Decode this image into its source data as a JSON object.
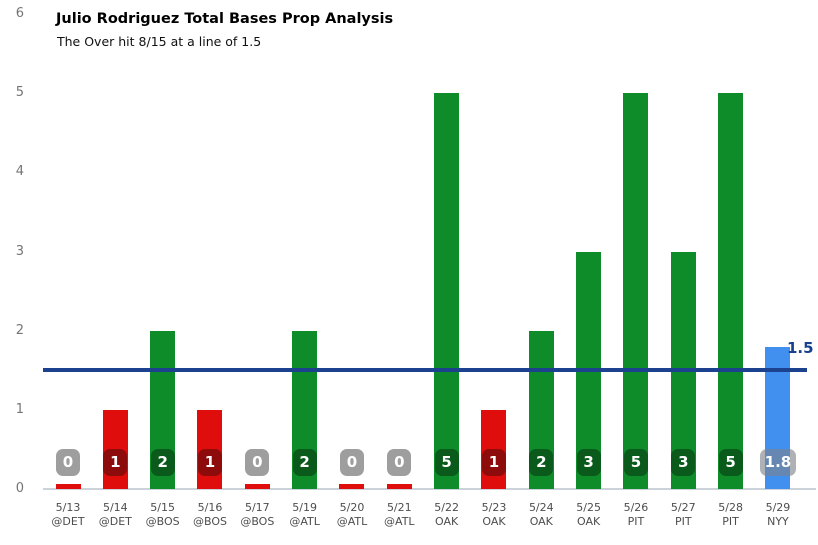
{
  "header": {
    "title": "Julio Rodriguez Total Bases Prop Analysis",
    "subtitle": "The Over hit 8/15 at a line of 1.5"
  },
  "prop_line": {
    "value": 1.5,
    "label": "1.5"
  },
  "y_axis": {
    "ticks": [
      "0",
      "1",
      "2",
      "3",
      "4",
      "5",
      "6"
    ],
    "max": 6
  },
  "colors": {
    "over_bar": "#0f8c2a",
    "under_bar": "#e00d0d",
    "zero_stub": "#e00d0d",
    "projection_bar": "#418fef",
    "prop_line": "#1b418f",
    "prop_line_label": "#15418f",
    "badge_over": "#0a5a1c",
    "badge_under": "#8e0b0b",
    "badge_zero": "#9e9e9e",
    "badge_projection": "rgba(125,130,138,0.62)",
    "axis_line": "#ccd2da",
    "x_tick_text": "#4d4d4d",
    "y_tick_text": "#757575"
  },
  "chart_data": {
    "type": "bar",
    "title": "Julio Rodriguez Total Bases Prop Analysis",
    "subtitle": "The Over hit 8/15 at a line of 1.5",
    "xlabel": "",
    "ylabel": "",
    "ylim": [
      0,
      6
    ],
    "grid": false,
    "line_value": 1.5,
    "x_dates": [
      "5/13",
      "5/14",
      "5/15",
      "5/16",
      "5/17",
      "5/19",
      "5/20",
      "5/21",
      "5/22",
      "5/23",
      "5/24",
      "5/25",
      "5/26",
      "5/27",
      "5/28",
      "5/29"
    ],
    "x_opponents": [
      "@DET",
      "@DET",
      "@BOS",
      "@BOS",
      "@BOS",
      "@ATL",
      "@ATL",
      "@ATL",
      "OAK",
      "OAK",
      "OAK",
      "OAK",
      "PIT",
      "PIT",
      "PIT",
      "NYY"
    ],
    "values": [
      0,
      1,
      2,
      1,
      0,
      2,
      0,
      0,
      5,
      1,
      2,
      3,
      5,
      3,
      5,
      1.8
    ],
    "value_labels": [
      "0",
      "1",
      "2",
      "1",
      "0",
      "2",
      "0",
      "0",
      "5",
      "1",
      "2",
      "3",
      "5",
      "3",
      "5",
      "1.8"
    ],
    "bar_types": [
      "zero",
      "under",
      "over",
      "under",
      "zero",
      "over",
      "zero",
      "zero",
      "over",
      "under",
      "over",
      "over",
      "over",
      "over",
      "over",
      "projection"
    ]
  }
}
